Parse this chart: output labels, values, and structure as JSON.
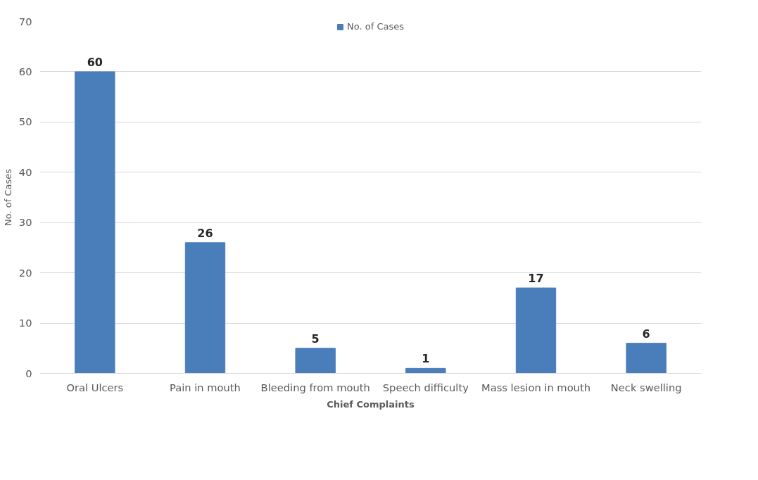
{
  "chart_data": {
    "type": "bar",
    "xlabel": "Chief Complaints",
    "ylabel": "No. of Cases",
    "categories": [
      "Oral Ulcers",
      "Pain in mouth",
      "Bleeding from mouth",
      "Speech difficulty",
      "Mass lesion in mouth",
      "Neck swelling"
    ],
    "series": [
      {
        "name": "No. of Cases",
        "color": "#4a7ebb",
        "values": [
          60,
          26,
          5,
          1,
          17,
          6
        ]
      }
    ],
    "ylim": [
      0,
      70
    ],
    "yticks": [
      0,
      10,
      20,
      30,
      40,
      50,
      60,
      70
    ],
    "grid": "y",
    "legend": "top",
    "data_labels": true
  }
}
